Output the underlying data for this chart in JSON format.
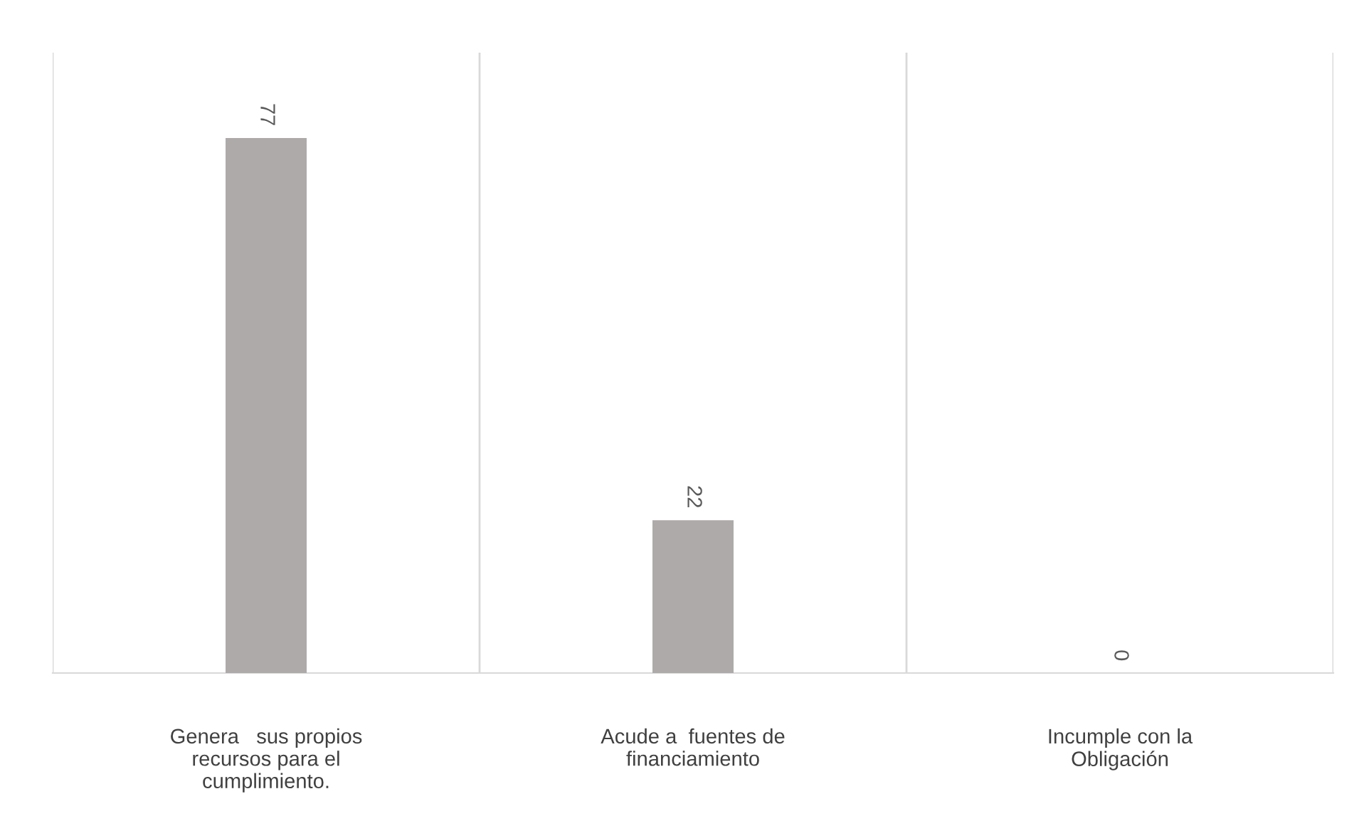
{
  "chart_data": {
    "type": "bar",
    "categories": [
      "Genera   sus propios\nrecursos para el\ncumplimiento.",
      "Acude a  fuentes de\nfinanciamiento",
      "Incumple con la\nObligación"
    ],
    "values": [
      77,
      22,
      0
    ],
    "color": "#aeaaaa",
    "data_labels": true,
    "grid": "x"
  }
}
